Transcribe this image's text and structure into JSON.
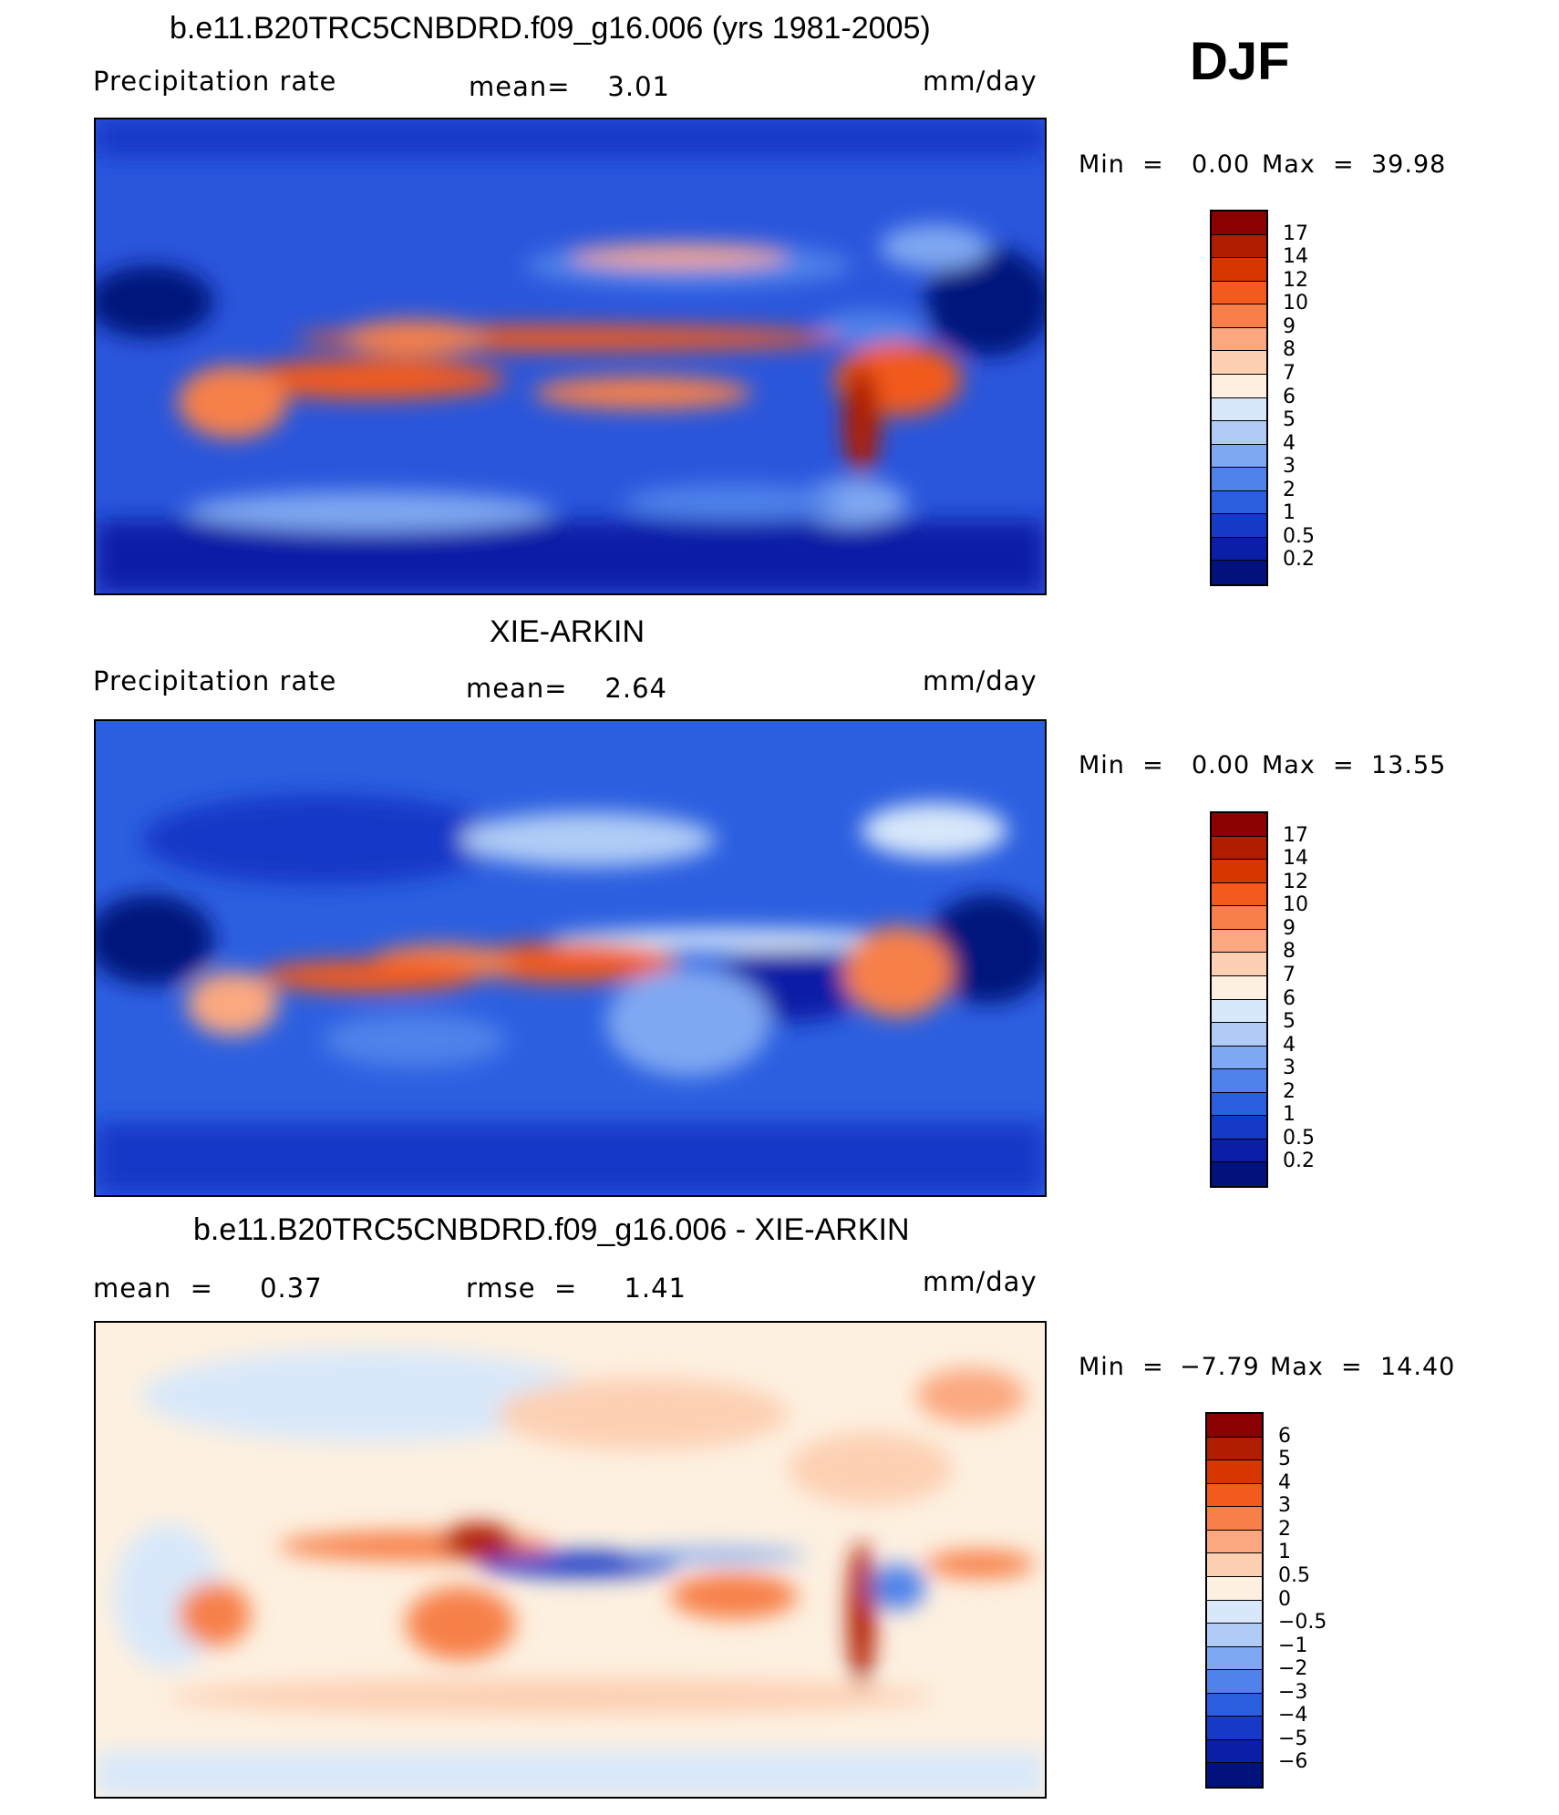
{
  "season": "DJF",
  "panels": [
    {
      "title": "b.e11.B20TRC5CNBDRD.f09_g16.006 (yrs 1981-2005)",
      "left_label": "Precipitation  rate",
      "center_label": "mean=    3.01",
      "right_label": "mm/day",
      "min_label": "Min  =",
      "min_value": "0.00",
      "max_label": "Max  =",
      "max_value": "39.98",
      "colorbar_labels": [
        "17",
        "14",
        "12",
        "10",
        "9",
        "8",
        "7",
        "6",
        "5",
        "4",
        "3",
        "2",
        "1",
        "0.5",
        "0.2"
      ],
      "colorbar_colors": [
        "#8b0000",
        "#b01e00",
        "#d73600",
        "#f25a1e",
        "#f7804a",
        "#fba880",
        "#fdd0b4",
        "#fdf0e0",
        "#d8e8fa",
        "#b0ccf6",
        "#7fa8f2",
        "#4f82ea",
        "#2c5fe0",
        "#1639c8",
        "#0a1fa6",
        "#02127d"
      ]
    },
    {
      "title": "XIE-ARKIN",
      "left_label": "Precipitation  rate",
      "center_label": "mean=    2.64",
      "right_label": "mm/day",
      "min_label": "Min  =",
      "min_value": "0.00",
      "max_label": "Max  =",
      "max_value": "13.55",
      "colorbar_labels": [
        "17",
        "14",
        "12",
        "10",
        "9",
        "8",
        "7",
        "6",
        "5",
        "4",
        "3",
        "2",
        "1",
        "0.5",
        "0.2"
      ],
      "colorbar_colors": [
        "#8b0000",
        "#b01e00",
        "#d73600",
        "#f25a1e",
        "#f7804a",
        "#fba880",
        "#fdd0b4",
        "#fdf0e0",
        "#d8e8fa",
        "#b0ccf6",
        "#7fa8f2",
        "#4f82ea",
        "#2c5fe0",
        "#1639c8",
        "#0a1fa6",
        "#02127d"
      ]
    },
    {
      "title": "b.e11.B20TRC5CNBDRD.f09_g16.006 - XIE-ARKIN",
      "left_label": "mean  =     0.37",
      "center_label": "rmse  =     1.41",
      "right_label": "mm/day",
      "min_label": "Min  =",
      "min_value": "−7.79",
      "max_label": "Max  =",
      "max_value": "14.40",
      "colorbar_labels": [
        "6",
        "5",
        "4",
        "3",
        "2",
        "1",
        "0.5",
        "0",
        "−0.5",
        "−1",
        "−2",
        "−3",
        "−4",
        "−5",
        "−6"
      ],
      "colorbar_colors": [
        "#8b0000",
        "#b01e00",
        "#d73600",
        "#f25a1e",
        "#f7804a",
        "#fba880",
        "#fdd0b4",
        "#fdf0e0",
        "#d8e8fa",
        "#b0ccf6",
        "#7fa8f2",
        "#4f82ea",
        "#2c5fe0",
        "#1639c8",
        "#0a1fa6",
        "#02127d"
      ]
    }
  ]
}
